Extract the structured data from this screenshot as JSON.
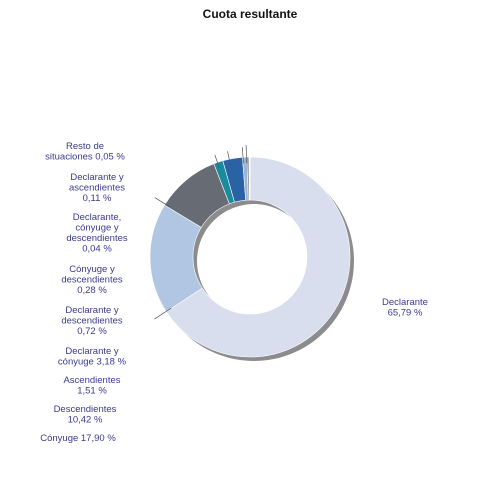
{
  "chart_data": {
    "type": "pie",
    "title": "Cuota resultante",
    "slices": [
      {
        "label_lines": [
          "Declarante",
          "65,79 %"
        ],
        "value": 65.79,
        "color": "#d9deef"
      },
      {
        "label_lines": [
          "Cónyuge 17,90 %"
        ],
        "value": 17.9,
        "color": "#b1c6e3"
      },
      {
        "label_lines": [
          "Descendientes",
          "10,42 %"
        ],
        "value": 10.42,
        "color": "#676b73"
      },
      {
        "label_lines": [
          "Ascendientes",
          "1,51 %"
        ],
        "value": 1.51,
        "color": "#1b8a9c"
      },
      {
        "label_lines": [
          "Declarante y",
          "cónyuge 3,18 %"
        ],
        "value": 3.18,
        "color": "#2a62a6"
      },
      {
        "label_lines": [
          "Declarante y",
          "descendientes",
          "0,72 %"
        ],
        "value": 0.72,
        "color": "#9bb3d4"
      },
      {
        "label_lines": [
          "Cónyuge y",
          "descendientes",
          "0,28 %"
        ],
        "value": 0.28,
        "color": "#5a5e66"
      },
      {
        "label_lines": [
          "Declarante,",
          "cónyuge y",
          "descendientes",
          "0,04 %"
        ],
        "value": 0.04,
        "color": "#3b6fb0"
      },
      {
        "label_lines": [
          "Declarante y",
          "ascendientes",
          "0,11 %"
        ],
        "value": 0.11,
        "color": "#c9cfd6"
      },
      {
        "label_lines": [
          "Resto de",
          "situaciones 0,05 %"
        ],
        "value": 0.05,
        "color": "#8a8f96"
      }
    ]
  }
}
